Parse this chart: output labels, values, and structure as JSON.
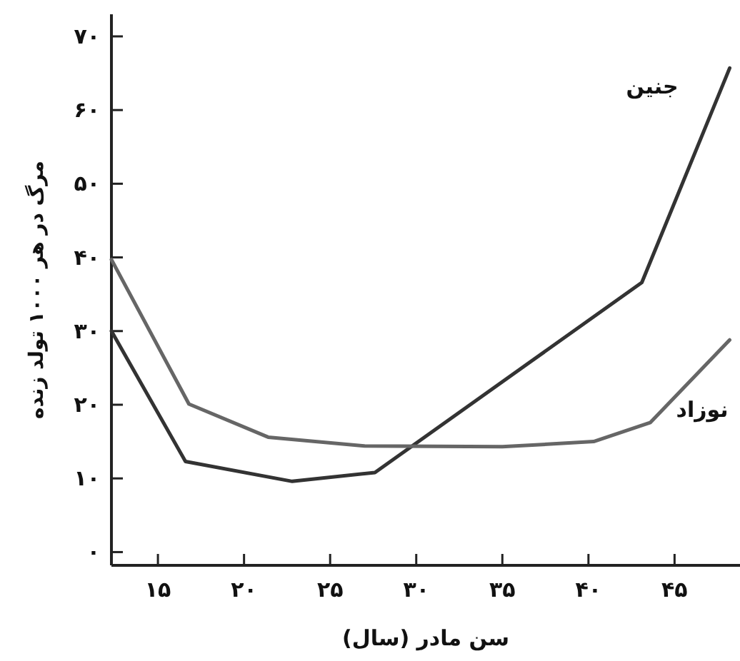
{
  "chart_data": {
    "type": "line",
    "xlabel": "سن مادر (سال)",
    "ylabel": "مرگ در هر ۱۰۰۰ تولد زنده",
    "xlim": [
      12.3,
      48.8
    ],
    "ylim": [
      -1.8,
      73
    ],
    "xticks": [
      {
        "value": 15,
        "label": "۱۵"
      },
      {
        "value": 20,
        "label": "۲۰"
      },
      {
        "value": 25,
        "label": "۲۵"
      },
      {
        "value": 30,
        "label": "۳۰"
      },
      {
        "value": 35,
        "label": "۳۵"
      },
      {
        "value": 40,
        "label": "۴۰"
      },
      {
        "value": 45,
        "label": "۴۵"
      }
    ],
    "yticks": [
      {
        "value": 0,
        "label": "۰"
      },
      {
        "value": 10,
        "label": "۱۰"
      },
      {
        "value": 20,
        "label": "۲۰"
      },
      {
        "value": 30,
        "label": "۳۰"
      },
      {
        "value": 40,
        "label": "۴۰"
      },
      {
        "value": 50,
        "label": "۵۰"
      },
      {
        "value": 60,
        "label": "۶۰"
      },
      {
        "value": 70,
        "label": "۷۰"
      }
    ],
    "series": [
      {
        "name": "جنین",
        "color": "#333333",
        "x": [
          12.3,
          16.6,
          22.8,
          27.6,
          43.1,
          48.2
        ],
        "values": [
          30,
          12.3,
          9.6,
          10.8,
          36.6,
          65.7
        ]
      },
      {
        "name": "نوزاد",
        "color": "#666666",
        "x": [
          12.3,
          16.8,
          21.4,
          27,
          35,
          40.3,
          43.6,
          48.2
        ],
        "values": [
          39.7,
          20.1,
          15.6,
          14.4,
          14.3,
          15,
          17.6,
          28.8
        ]
      }
    ],
    "legend": false,
    "grid": false
  }
}
